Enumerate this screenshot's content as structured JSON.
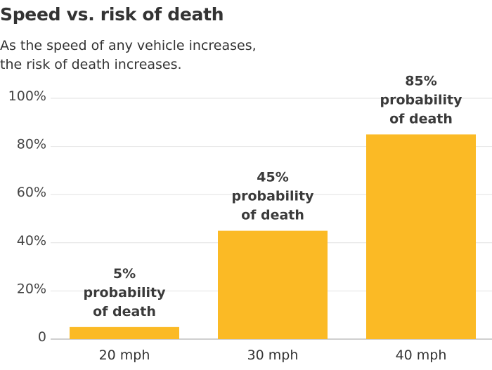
{
  "chart_data": {
    "type": "bar",
    "title": "Speed vs. risk of death",
    "subtitle": [
      "As the speed of any vehicle increases,",
      "the risk of death increases."
    ],
    "categories": [
      "20 mph",
      "30 mph",
      "40 mph"
    ],
    "values": [
      5,
      45,
      85
    ],
    "data_labels": [
      [
        "5%",
        "probability",
        "of death"
      ],
      [
        "45%",
        "probability",
        "of death"
      ],
      [
        "85%",
        "probability",
        "of death"
      ]
    ],
    "yticks": [
      0,
      20,
      40,
      60,
      80,
      100
    ],
    "ytick_labels": [
      "0",
      "20%",
      "40%",
      "60%",
      "80%",
      "100%"
    ],
    "ylim": [
      0,
      100
    ],
    "xlabel": "",
    "ylabel": "",
    "grid": true,
    "bar_color": "#FBBA25"
  }
}
